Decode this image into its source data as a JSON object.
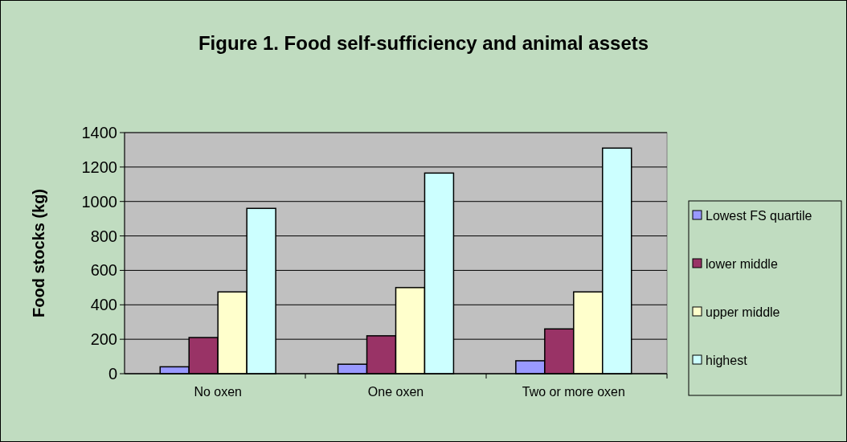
{
  "chart_data": {
    "type": "bar",
    "title": "Figure 1. Food self-sufficiency and animal assets",
    "ylabel": "Food stocks (kg)",
    "categories": [
      "No oxen",
      "One oxen",
      "Two or more oxen"
    ],
    "series": [
      {
        "name": "Lowest FS quartile",
        "color": "#9999ff",
        "values": [
          40,
          55,
          75
        ]
      },
      {
        "name": "lower middle",
        "color": "#993366",
        "values": [
          210,
          220,
          260
        ]
      },
      {
        "name": "upper middle",
        "color": "#ffffcc",
        "values": [
          475,
          500,
          475
        ]
      },
      {
        "name": "highest",
        "color": "#ccffff",
        "values": [
          960,
          1165,
          1310
        ]
      }
    ],
    "ylim": [
      0,
      1400
    ],
    "yticks": [
      0,
      200,
      400,
      600,
      800,
      1000,
      1200,
      1400
    ],
    "grid": "y",
    "legend": "right"
  }
}
